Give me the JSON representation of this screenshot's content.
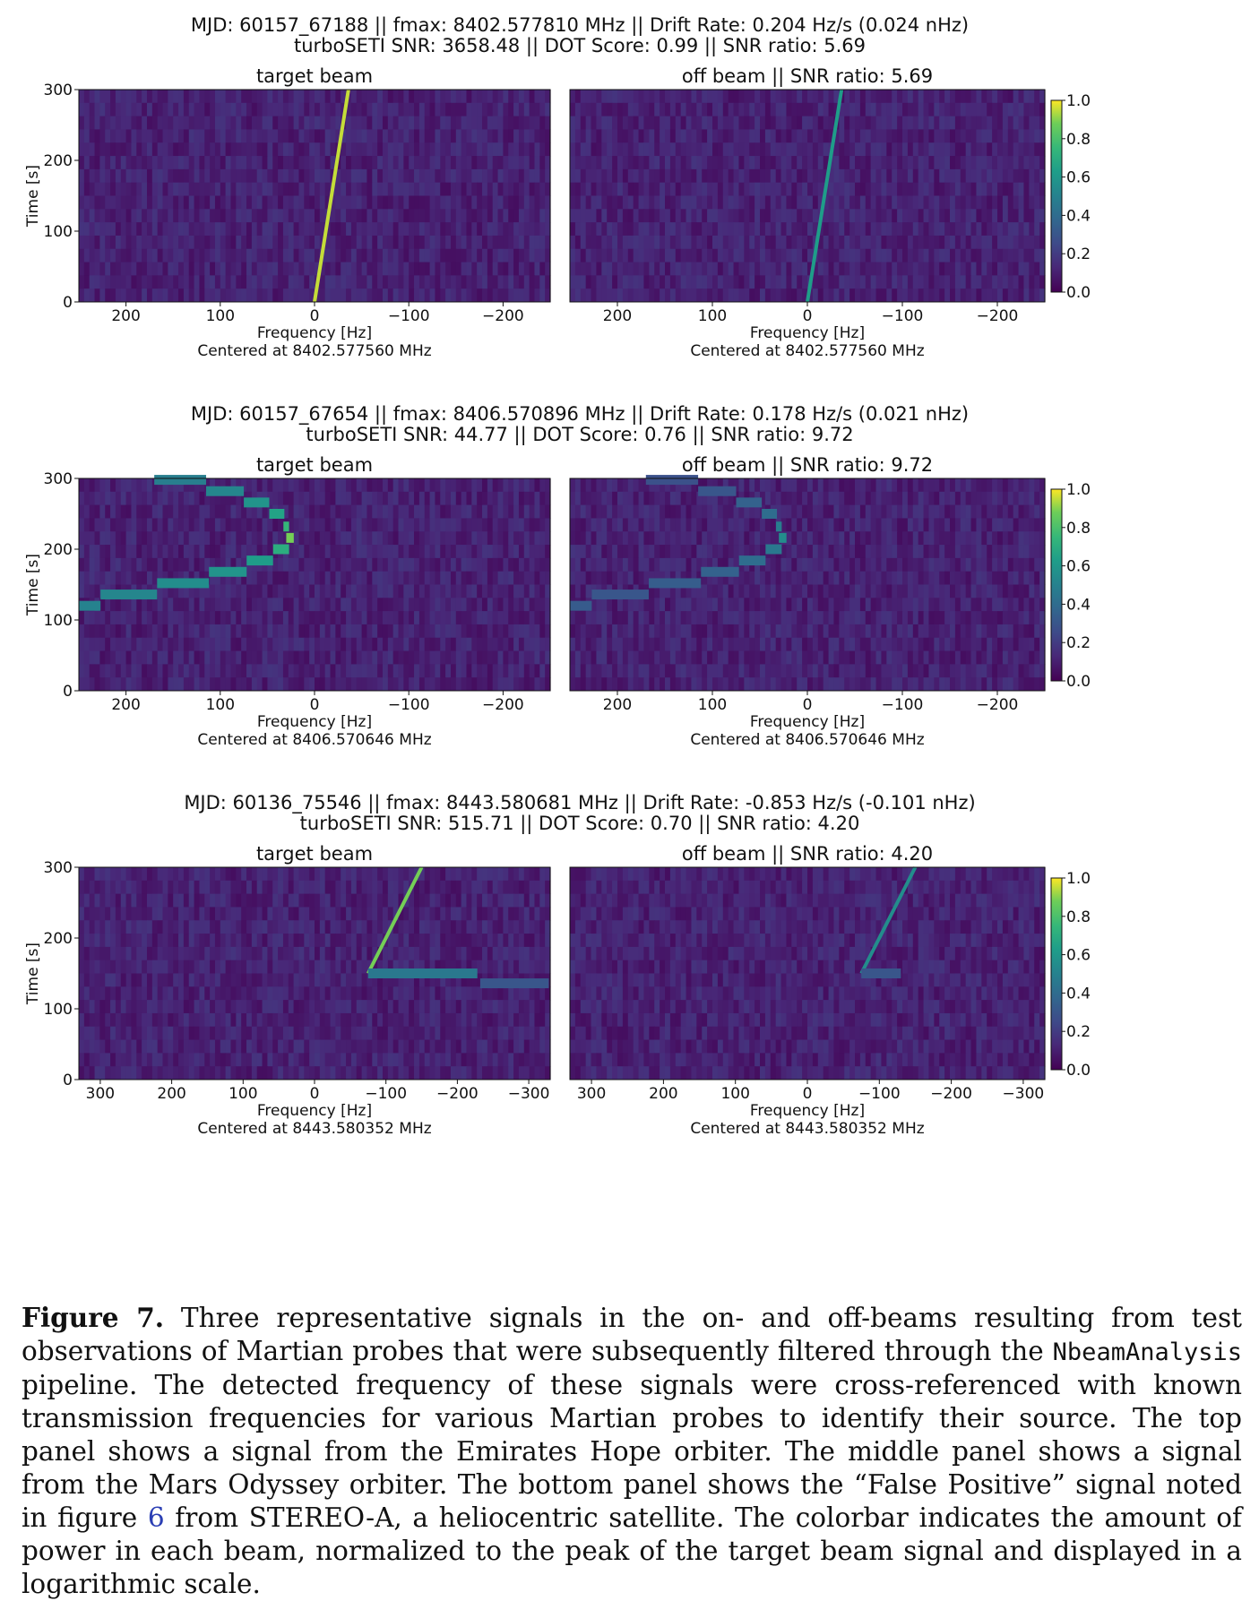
{
  "chart_data": [
    {
      "type": "heatmap",
      "header_lines": [
        "MJD: 60157_67188 || fmax: 8402.577810 MHz || Drift Rate: 0.204 Hz/s (0.024 nHz)",
        "turboSETI SNR: 3658.48 || DOT Score: 0.99 || SNR ratio: 5.69"
      ],
      "ylabel": "Time [s]",
      "xlabel": "Frequency [Hz]",
      "center_label": "Centered at 8402.577560 MHz",
      "xlim": [
        250,
        -250
      ],
      "ylim": [
        0,
        300
      ],
      "xticks": [
        200,
        100,
        0,
        -100,
        -200
      ],
      "yticks": [
        0,
        100,
        200,
        300
      ],
      "colorbar": {
        "range": [
          0.0,
          1.0
        ],
        "ticks": [
          "0.0",
          "0.2",
          "0.4",
          "0.6",
          "0.8",
          "1.0"
        ],
        "colormap": "viridis"
      },
      "panels": [
        {
          "title": "target beam",
          "segments": [
            {
              "points": [
                [
                  0,
                  0
                ],
                [
                  -36,
                  300
                ]
              ],
              "intensity": 0.95,
              "shape": "line"
            }
          ]
        },
        {
          "title": "off beam  || SNR ratio: 5.69",
          "segments": [
            {
              "points": [
                [
                  0,
                  0
                ],
                [
                  -36,
                  300
                ]
              ],
              "intensity": 0.62,
              "shape": "line"
            }
          ]
        }
      ]
    },
    {
      "type": "heatmap",
      "header_lines": [
        "MJD: 60157_67654 || fmax: 8406.570896 MHz || Drift Rate: 0.178 Hz/s (0.021 nHz)",
        "turboSETI SNR: 44.77 || DOT Score: 0.76 || SNR ratio: 9.72"
      ],
      "ylabel": "Time [s]",
      "xlabel": "Frequency [Hz]",
      "center_label": "Centered at 8406.570646 MHz",
      "xlim": [
        250,
        -250
      ],
      "ylim": [
        0,
        300
      ],
      "xticks": [
        200,
        100,
        0,
        -100,
        -200
      ],
      "yticks": [
        0,
        100,
        200,
        300
      ],
      "colorbar": {
        "range": [
          0.0,
          1.0
        ],
        "ticks": [
          "0.0",
          "0.2",
          "0.4",
          "0.6",
          "0.8",
          "1.0"
        ],
        "colormap": "viridis"
      },
      "panels": [
        {
          "title": "target beam",
          "segments": [
            {
              "points": [
                [
                  250,
                  120
                ],
                [
                  227,
                  120
                ]
              ],
              "intensity": 0.5,
              "shape": "step"
            },
            {
              "points": [
                [
                  227,
                  136
                ],
                [
                  167,
                  136
                ]
              ],
              "intensity": 0.52,
              "shape": "step"
            },
            {
              "points": [
                [
                  167,
                  152
                ],
                [
                  112,
                  152
                ]
              ],
              "intensity": 0.55,
              "shape": "step"
            },
            {
              "points": [
                [
                  112,
                  168
                ],
                [
                  72,
                  168
                ]
              ],
              "intensity": 0.58,
              "shape": "step"
            },
            {
              "points": [
                [
                  72,
                  184
                ],
                [
                  44,
                  184
                ]
              ],
              "intensity": 0.62,
              "shape": "step"
            },
            {
              "points": [
                [
                  44,
                  200
                ],
                [
                  27,
                  200
                ]
              ],
              "intensity": 0.7,
              "shape": "step"
            },
            {
              "points": [
                [
                  30,
                  216
                ],
                [
                  22,
                  216
                ]
              ],
              "intensity": 0.88,
              "shape": "step"
            },
            {
              "points": [
                [
                  33,
                  232
                ],
                [
                  27,
                  232
                ]
              ],
              "intensity": 0.75,
              "shape": "step"
            },
            {
              "points": [
                [
                  48,
                  250
                ],
                [
                  32,
                  250
                ]
              ],
              "intensity": 0.65,
              "shape": "step"
            },
            {
              "points": [
                [
                  75,
                  266
                ],
                [
                  48,
                  266
                ]
              ],
              "intensity": 0.58,
              "shape": "step"
            },
            {
              "points": [
                [
                  115,
                  282
                ],
                [
                  75,
                  282
                ]
              ],
              "intensity": 0.52,
              "shape": "step"
            },
            {
              "points": [
                [
                  170,
                  298
                ],
                [
                  115,
                  298
                ]
              ],
              "intensity": 0.48,
              "shape": "step"
            }
          ]
        },
        {
          "title": "off beam  || SNR ratio: 9.72",
          "segments": [
            {
              "points": [
                [
                  250,
                  120
                ],
                [
                  227,
                  120
                ]
              ],
              "intensity": 0.32,
              "shape": "step"
            },
            {
              "points": [
                [
                  227,
                  136
                ],
                [
                  167,
                  136
                ]
              ],
              "intensity": 0.3,
              "shape": "step"
            },
            {
              "points": [
                [
                  167,
                  152
                ],
                [
                  112,
                  152
                ]
              ],
              "intensity": 0.33,
              "shape": "step"
            },
            {
              "points": [
                [
                  112,
                  168
                ],
                [
                  72,
                  168
                ]
              ],
              "intensity": 0.35,
              "shape": "step"
            },
            {
              "points": [
                [
                  72,
                  184
                ],
                [
                  44,
                  184
                ]
              ],
              "intensity": 0.4,
              "shape": "step"
            },
            {
              "points": [
                [
                  44,
                  200
                ],
                [
                  27,
                  200
                ]
              ],
              "intensity": 0.45,
              "shape": "step"
            },
            {
              "points": [
                [
                  30,
                  216
                ],
                [
                  22,
                  216
                ]
              ],
              "intensity": 0.55,
              "shape": "step"
            },
            {
              "points": [
                [
                  33,
                  232
                ],
                [
                  27,
                  232
                ]
              ],
              "intensity": 0.48,
              "shape": "step"
            },
            {
              "points": [
                [
                  48,
                  250
                ],
                [
                  32,
                  250
                ]
              ],
              "intensity": 0.4,
              "shape": "step"
            },
            {
              "points": [
                [
                  75,
                  266
                ],
                [
                  48,
                  266
                ]
              ],
              "intensity": 0.35,
              "shape": "step"
            },
            {
              "points": [
                [
                  115,
                  282
                ],
                [
                  75,
                  282
                ]
              ],
              "intensity": 0.3,
              "shape": "step"
            },
            {
              "points": [
                [
                  170,
                  298
                ],
                [
                  115,
                  298
                ]
              ],
              "intensity": 0.28,
              "shape": "step"
            }
          ]
        }
      ]
    },
    {
      "type": "heatmap",
      "header_lines": [
        "MJD: 60136_75546 || fmax: 8443.580681 MHz || Drift Rate: -0.853 Hz/s (-0.101 nHz)",
        "turboSETI SNR: 515.71 || DOT Score: 0.70 || SNR ratio: 4.20"
      ],
      "ylabel": "Time [s]",
      "xlabel": "Frequency [Hz]",
      "center_label": "Centered at 8443.580352 MHz",
      "xlim": [
        330,
        -330
      ],
      "ylim": [
        0,
        300
      ],
      "xticks": [
        300,
        200,
        100,
        0,
        -100,
        -200,
        -300
      ],
      "yticks": [
        0,
        100,
        200,
        300
      ],
      "colorbar": {
        "range": [
          0.0,
          1.0
        ],
        "ticks": [
          "0.0",
          "0.2",
          "0.4",
          "0.6",
          "0.8",
          "1.0"
        ],
        "colormap": "viridis"
      },
      "panels": [
        {
          "title": "target beam",
          "segments": [
            {
              "points": [
                [
                  -75,
                  150
                ],
                [
                  -150,
                  300
                ]
              ],
              "intensity": 0.88,
              "shape": "line"
            },
            {
              "points": [
                [
                  -75,
                  150
                ],
                [
                  -228,
                  150
                ]
              ],
              "intensity": 0.45,
              "shape": "step"
            },
            {
              "points": [
                [
                  -232,
                  136
                ],
                [
                  -328,
                  136
                ]
              ],
              "intensity": 0.3,
              "shape": "step"
            }
          ]
        },
        {
          "title": "off beam  || SNR ratio: 4.20",
          "segments": [
            {
              "points": [
                [
                  -75,
                  150
                ],
                [
                  -150,
                  300
                ]
              ],
              "intensity": 0.55,
              "shape": "line"
            },
            {
              "points": [
                [
                  -75,
                  150
                ],
                [
                  -130,
                  150
                ]
              ],
              "intensity": 0.3,
              "shape": "step"
            }
          ]
        }
      ]
    }
  ],
  "caption": {
    "label": "Figure 7.",
    "text_1": "Three representative signals in the on- and off-beams resulting from test observations of Martian probes that were subsequently filtered through the",
    "code": "NbeamAnalysis",
    "text_2": "pipeline. The detected frequency of these signals were cross-referenced with known transmission frequencies for various Martian probes to identify their source.  The top panel shows a signal from the Emirates Hope orbiter.  The middle panel shows a signal from the Mars Odyssey orbiter. The bottom panel shows the “False Positive” signal noted in figure",
    "ref": "6",
    "text_3": "from STEREO-A, a heliocentric satellite. The colorbar indicates the amount of power in each beam, normalized to the peak of the target beam signal and displayed in a logarithmic scale."
  }
}
